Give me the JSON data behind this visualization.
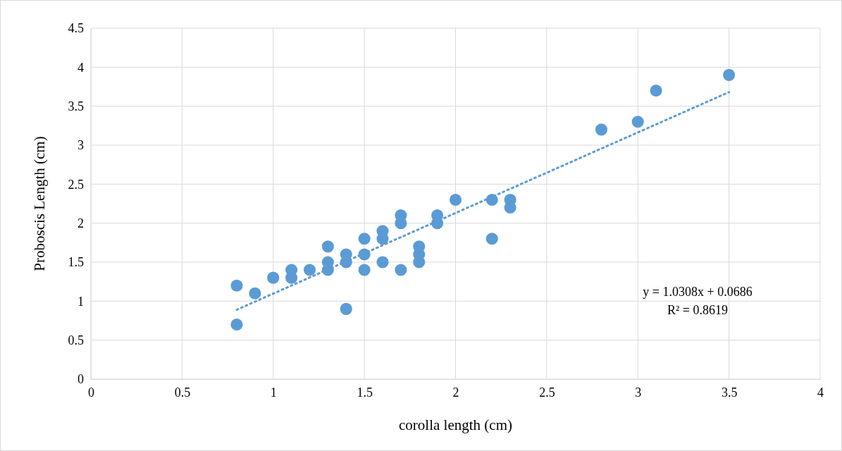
{
  "chart_data": {
    "type": "scatter",
    "xlabel": "corolla length (cm)",
    "ylabel": "Proboscis Length (cm)",
    "xlim": [
      0,
      4
    ],
    "xticks": [
      0,
      0.5,
      1,
      1.5,
      2,
      2.5,
      3,
      3.5,
      4
    ],
    "ylim": [
      0,
      4.5
    ],
    "yticks": [
      0,
      0.5,
      1,
      1.5,
      2,
      2.5,
      3,
      3.5,
      4,
      4.5
    ],
    "grid": true,
    "marker": "circle",
    "annotations": [
      "y = 1.0308x + 0.0686",
      "R² = 0.8619"
    ],
    "series": [
      {
        "color": "#5b9bd5",
        "x": [
          0.8,
          0.8,
          0.9,
          1.0,
          1.1,
          1.1,
          1.2,
          1.3,
          1.3,
          1.3,
          1.4,
          1.4,
          1.4,
          1.5,
          1.5,
          1.5,
          1.6,
          1.6,
          1.6,
          1.7,
          1.7,
          1.7,
          1.8,
          1.8,
          1.8,
          1.9,
          1.9,
          2.0,
          2.2,
          2.2,
          2.3,
          2.3,
          2.8,
          3.0,
          3.1,
          3.5
        ],
        "values": [
          1.2,
          0.7,
          1.1,
          1.3,
          1.4,
          1.3,
          1.4,
          1.7,
          1.5,
          1.4,
          1.6,
          1.5,
          0.9,
          1.8,
          1.6,
          1.4,
          1.9,
          1.8,
          1.5,
          2.1,
          2.0,
          1.4,
          1.7,
          1.6,
          1.5,
          2.1,
          2.0,
          2.3,
          2.3,
          1.8,
          2.3,
          2.2,
          3.2,
          3.3,
          3.7,
          3.9
        ]
      },
      {
        "type": "line",
        "color": "#5b9bd5",
        "line_style": "dotted",
        "marker": "none",
        "x": [
          0.8,
          3.5
        ],
        "values": [
          0.89,
          3.68
        ]
      }
    ]
  }
}
